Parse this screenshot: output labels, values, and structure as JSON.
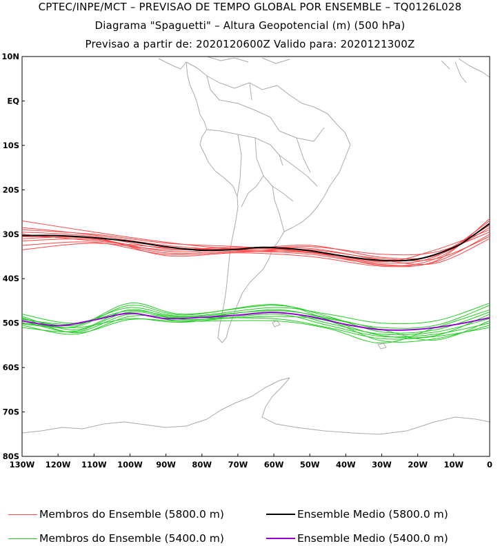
{
  "header": {
    "line1": "CPTEC/INPE/MCT – PREVISAO DE TEMPO GLOBAL POR ENSEMBLE – TQ0126L028",
    "line2": "Diagrama \"Spaguetti\" – Altura Geopotencial (m) (500 hPa)",
    "line3": "Previsao a partir de: 2020120600Z  Valido para: 2020121300Z"
  },
  "map": {
    "projection": "cylindrical",
    "lon_range": [
      -130,
      0
    ],
    "lat_range": [
      -80,
      10
    ],
    "y_ticks": [
      "10N",
      "EQ",
      "10S",
      "20S",
      "30S",
      "40S",
      "50S",
      "60S",
      "70S",
      "80S"
    ],
    "x_ticks": [
      "130W",
      "120W",
      "110W",
      "100W",
      "90W",
      "80W",
      "70W",
      "60W",
      "50W",
      "40W",
      "30W",
      "20W",
      "10W",
      "0"
    ],
    "coastline_color": "#aaaaaa"
  },
  "chart_data": {
    "type": "line",
    "x_unit": "longitude (deg)",
    "y_unit": "latitude (deg)",
    "series": [
      {
        "name": "Ensemble Medio (5800.0 m)",
        "color": "#000000",
        "points": [
          [
            -130,
            -30.3
          ],
          [
            -120,
            -30.3
          ],
          [
            -110,
            -30.8
          ],
          [
            -100,
            -31.6
          ],
          [
            -90,
            -32.8
          ],
          [
            -80,
            -33.6
          ],
          [
            -70,
            -33.4
          ],
          [
            -65,
            -33.0
          ],
          [
            -60,
            -33.0
          ],
          [
            -50,
            -33.7
          ],
          [
            -40,
            -35.0
          ],
          [
            -30,
            -35.9
          ],
          [
            -20,
            -35.6
          ],
          [
            -10,
            -33.0
          ],
          [
            -5,
            -30.5
          ],
          [
            0,
            -27.6
          ]
        ]
      },
      {
        "name": "Ensemble Medio (5400.0 m)",
        "color": "#9400d3",
        "points": [
          [
            -130,
            -49.5
          ],
          [
            -120,
            -50.6
          ],
          [
            -110,
            -49.3
          ],
          [
            -100,
            -47.8
          ],
          [
            -90,
            -49.0
          ],
          [
            -80,
            -48.7
          ],
          [
            -70,
            -48.2
          ],
          [
            -60,
            -47.6
          ],
          [
            -50,
            -48.5
          ],
          [
            -40,
            -50.3
          ],
          [
            -30,
            -51.5
          ],
          [
            -20,
            -51.4
          ],
          [
            -10,
            -50.4
          ],
          [
            0,
            -48.8
          ]
        ]
      },
      {
        "name": "Membros do Ensemble (5800.0 m)",
        "color": "#ff4444",
        "members": [
          [
            [
              -130,
              -27.0
            ],
            [
              -110,
              -29.5
            ],
            [
              -90,
              -31.8
            ],
            [
              -70,
              -33.3
            ],
            [
              -50,
              -32.8
            ],
            [
              -30,
              -34.5
            ],
            [
              -15,
              -34.0
            ],
            [
              0,
              -29.5
            ]
          ],
          [
            [
              -130,
              -28.5
            ],
            [
              -110,
              -30.2
            ],
            [
              -90,
              -32.5
            ],
            [
              -70,
              -33.6
            ],
            [
              -50,
              -33.5
            ],
            [
              -30,
              -35.5
            ],
            [
              -15,
              -35.5
            ],
            [
              0,
              -30.5
            ]
          ],
          [
            [
              -130,
              -29.5
            ],
            [
              -110,
              -30.5
            ],
            [
              -90,
              -33.2
            ],
            [
              -70,
              -33.0
            ],
            [
              -50,
              -34.0
            ],
            [
              -30,
              -36.0
            ],
            [
              -15,
              -34.5
            ],
            [
              0,
              -28.0
            ]
          ],
          [
            [
              -130,
              -30.5
            ],
            [
              -110,
              -31.0
            ],
            [
              -90,
              -33.8
            ],
            [
              -70,
              -33.5
            ],
            [
              -50,
              -34.2
            ],
            [
              -30,
              -36.5
            ],
            [
              -15,
              -35.0
            ],
            [
              0,
              -27.0
            ]
          ],
          [
            [
              -130,
              -31.5
            ],
            [
              -110,
              -31.2
            ],
            [
              -90,
              -34.2
            ],
            [
              -70,
              -33.8
            ],
            [
              -50,
              -34.5
            ],
            [
              -30,
              -36.8
            ],
            [
              -15,
              -36.0
            ],
            [
              0,
              -26.5
            ]
          ],
          [
            [
              -130,
              -32.5
            ],
            [
              -110,
              -31.8
            ],
            [
              -90,
              -34.5
            ],
            [
              -70,
              -34.0
            ],
            [
              -50,
              -34.0
            ],
            [
              -30,
              -37.0
            ],
            [
              -15,
              -35.5
            ],
            [
              0,
              -27.5
            ]
          ],
          [
            [
              -130,
              -33.5
            ],
            [
              -110,
              -32.0
            ],
            [
              -90,
              -33.5
            ],
            [
              -70,
              -33.2
            ],
            [
              -50,
              -33.2
            ],
            [
              -30,
              -35.8
            ],
            [
              -15,
              -36.5
            ],
            [
              0,
              -31.0
            ]
          ],
          [
            [
              -130,
              -29.0
            ],
            [
              -110,
              -30.0
            ],
            [
              -90,
              -32.0
            ],
            [
              -70,
              -32.8
            ],
            [
              -50,
              -33.8
            ],
            [
              -30,
              -36.2
            ],
            [
              -15,
              -33.5
            ],
            [
              0,
              -29.0
            ]
          ],
          [
            [
              -130,
              -30.0
            ],
            [
              -110,
              -31.5
            ],
            [
              -90,
              -33.0
            ],
            [
              -70,
              -33.4
            ],
            [
              -50,
              -32.5
            ],
            [
              -30,
              -35.2
            ],
            [
              -15,
              -34.8
            ],
            [
              0,
              -28.5
            ]
          ],
          [
            [
              -130,
              -31.0
            ],
            [
              -110,
              -30.8
            ],
            [
              -90,
              -34.8
            ],
            [
              -70,
              -34.2
            ],
            [
              -50,
              -35.0
            ],
            [
              -30,
              -37.2
            ],
            [
              -15,
              -36.2
            ],
            [
              0,
              -30.0
            ]
          ]
        ]
      },
      {
        "name": "Membros do Ensemble (5400.0 m)",
        "color": "#22cc22",
        "members": [
          [
            [
              -130,
              -48.0
            ],
            [
              -115,
              -50.0
            ],
            [
              -100,
              -46.5
            ],
            [
              -85,
              -48.5
            ],
            [
              -60,
              -46.5
            ],
            [
              -45,
              -48.0
            ],
            [
              -30,
              -50.0
            ],
            [
              -15,
              -49.5
            ],
            [
              0,
              -45.5
            ]
          ],
          [
            [
              -130,
              -48.5
            ],
            [
              -115,
              -51.5
            ],
            [
              -100,
              -47.0
            ],
            [
              -85,
              -49.0
            ],
            [
              -60,
              -47.0
            ],
            [
              -45,
              -49.0
            ],
            [
              -30,
              -51.0
            ],
            [
              -15,
              -50.5
            ],
            [
              0,
              -46.0
            ]
          ],
          [
            [
              -130,
              -49.0
            ],
            [
              -115,
              -50.5
            ],
            [
              -100,
              -45.5
            ],
            [
              -85,
              -48.0
            ],
            [
              -60,
              -46.0
            ],
            [
              -45,
              -48.5
            ],
            [
              -30,
              -52.0
            ],
            [
              -15,
              -51.5
            ],
            [
              0,
              -47.5
            ]
          ],
          [
            [
              -130,
              -49.5
            ],
            [
              -115,
              -52.0
            ],
            [
              -100,
              -48.0
            ],
            [
              -85,
              -49.5
            ],
            [
              -60,
              -47.5
            ],
            [
              -45,
              -50.0
            ],
            [
              -30,
              -52.5
            ],
            [
              -15,
              -52.0
            ],
            [
              0,
              -49.0
            ]
          ],
          [
            [
              -130,
              -50.0
            ],
            [
              -115,
              -51.0
            ],
            [
              -100,
              -49.0
            ],
            [
              -85,
              -49.8
            ],
            [
              -60,
              -48.0
            ],
            [
              -45,
              -50.5
            ],
            [
              -30,
              -53.0
            ],
            [
              -15,
              -52.5
            ],
            [
              0,
              -50.0
            ]
          ],
          [
            [
              -130,
              -50.5
            ],
            [
              -115,
              -52.5
            ],
            [
              -100,
              -48.5
            ],
            [
              -85,
              -48.8
            ],
            [
              -60,
              -49.0
            ],
            [
              -45,
              -51.0
            ],
            [
              -30,
              -53.5
            ],
            [
              -15,
              -53.0
            ],
            [
              0,
              -51.0
            ]
          ],
          [
            [
              -130,
              -51.0
            ],
            [
              -115,
              -51.8
            ],
            [
              -100,
              -47.5
            ],
            [
              -85,
              -49.2
            ],
            [
              -60,
              -48.5
            ],
            [
              -45,
              -49.5
            ],
            [
              -30,
              -54.0
            ],
            [
              -15,
              -53.5
            ],
            [
              0,
              -50.5
            ]
          ],
          [
            [
              -130,
              -50.2
            ],
            [
              -115,
              -50.8
            ],
            [
              -100,
              -46.0
            ],
            [
              -85,
              -48.2
            ],
            [
              -60,
              -45.8
            ],
            [
              -45,
              -49.2
            ],
            [
              -30,
              -52.8
            ],
            [
              -15,
              -52.8
            ],
            [
              0,
              -48.0
            ]
          ],
          [
            [
              -130,
              -48.8
            ],
            [
              -115,
              -52.2
            ],
            [
              -100,
              -49.2
            ],
            [
              -85,
              -49.6
            ],
            [
              -60,
              -49.5
            ],
            [
              -45,
              -51.2
            ],
            [
              -30,
              -54.5
            ],
            [
              -15,
              -51.0
            ],
            [
              0,
              -47.0
            ]
          ],
          [
            [
              -130,
              -49.2
            ],
            [
              -115,
              -50.2
            ],
            [
              -100,
              -47.2
            ],
            [
              -85,
              -48.6
            ],
            [
              -60,
              -47.2
            ],
            [
              -45,
              -48.8
            ],
            [
              -30,
              -51.5
            ],
            [
              -15,
              -53.8
            ],
            [
              0,
              -49.5
            ]
          ]
        ]
      }
    ]
  },
  "legend": [
    {
      "label": "Membros do Ensemble (5800.0 m)",
      "color": "#ff4444"
    },
    {
      "label": "Ensemble Medio (5800.0 m)",
      "color": "#000000"
    },
    {
      "label": "Membros do Ensemble (5400.0 m)",
      "color": "#22cc22"
    },
    {
      "label": "Ensemble Medio (5400.0 m)",
      "color": "#9400d3"
    }
  ]
}
